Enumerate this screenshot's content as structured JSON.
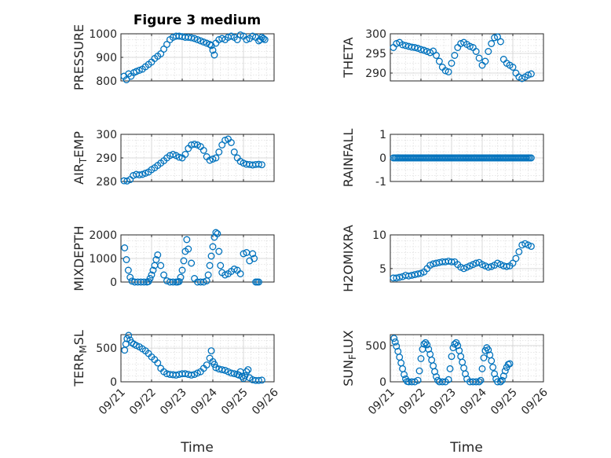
{
  "figure": {
    "title": "Figure 3 medium",
    "marker_color": "#0072BD",
    "date_ticks": [
      "09/21",
      "09/22",
      "09/23",
      "09/24",
      "09/25",
      "09/26"
    ],
    "x_axis_label": "Time"
  },
  "chart_data": [
    {
      "type": "scatter",
      "ylabel": "PRESSURE",
      "ylim": [
        800,
        1000
      ],
      "yticks": [
        800,
        900,
        1000
      ],
      "xlim_days": [
        0,
        5
      ],
      "grid": true,
      "x_day": [
        0.1,
        0.18,
        0.25,
        0.33,
        0.42,
        0.5,
        0.6,
        0.7,
        0.8,
        0.9,
        1.0,
        1.1,
        1.2,
        1.3,
        1.4,
        1.5,
        1.6,
        1.7,
        1.8,
        1.9,
        2.0,
        2.1,
        2.2,
        2.3,
        2.4,
        2.5,
        2.6,
        2.7,
        2.8,
        2.9,
        2.95,
        3.0,
        3.05,
        3.1,
        3.2,
        3.3,
        3.4,
        3.5,
        3.6,
        3.7,
        3.8,
        3.9,
        4.0,
        4.1,
        4.2,
        4.3,
        4.4,
        4.5,
        4.55,
        4.6,
        4.65,
        4.7
      ],
      "y": [
        820,
        805,
        830,
        820,
        835,
        840,
        845,
        850,
        860,
        870,
        880,
        895,
        905,
        915,
        935,
        955,
        975,
        985,
        990,
        990,
        988,
        985,
        985,
        983,
        980,
        975,
        970,
        965,
        960,
        955,
        950,
        930,
        910,
        960,
        975,
        980,
        975,
        985,
        990,
        985,
        975,
        995,
        990,
        975,
        980,
        990,
        985,
        970,
        975,
        985,
        980,
        975
      ]
    },
    {
      "type": "scatter",
      "ylabel": "THETA",
      "ylim": [
        288,
        300
      ],
      "yticks": [
        290,
        295,
        300
      ],
      "xlim_days": [
        0,
        5
      ],
      "grid": true,
      "x_day": [
        0.1,
        0.2,
        0.3,
        0.4,
        0.5,
        0.6,
        0.7,
        0.8,
        0.9,
        1.0,
        1.1,
        1.2,
        1.3,
        1.4,
        1.5,
        1.6,
        1.7,
        1.8,
        1.9,
        2.0,
        2.1,
        2.2,
        2.3,
        2.4,
        2.5,
        2.6,
        2.7,
        2.8,
        2.9,
        3.0,
        3.1,
        3.2,
        3.3,
        3.4,
        3.5,
        3.6,
        3.7,
        3.8,
        3.9,
        4.0,
        4.1,
        4.2,
        4.3,
        4.4,
        4.5,
        4.6
      ],
      "y": [
        296.5,
        297.5,
        297.8,
        297.2,
        297.0,
        296.8,
        296.6,
        296.5,
        296.3,
        296.0,
        295.8,
        295.5,
        295.2,
        295.6,
        294.5,
        293.0,
        291.5,
        290.6,
        290.3,
        292.5,
        294.5,
        296.5,
        297.5,
        297.8,
        297.3,
        296.8,
        296.5,
        295.5,
        293.8,
        292.0,
        293.0,
        295.5,
        297.5,
        299.0,
        299.2,
        298.0,
        293.5,
        292.5,
        292.0,
        291.5,
        290.0,
        289.0,
        288.6,
        289.0,
        289.5,
        289.8
      ]
    },
    {
      "type": "scatter",
      "ylabel": "AIR_TEMP",
      "ylim": [
        280,
        300
      ],
      "yticks": [
        280,
        290,
        300
      ],
      "xlim_days": [
        0,
        5
      ],
      "grid": true,
      "x_day": [
        0.1,
        0.2,
        0.3,
        0.4,
        0.5,
        0.6,
        0.7,
        0.8,
        0.9,
        1.0,
        1.1,
        1.2,
        1.3,
        1.4,
        1.5,
        1.6,
        1.7,
        1.8,
        1.9,
        2.0,
        2.1,
        2.2,
        2.3,
        2.4,
        2.5,
        2.6,
        2.7,
        2.8,
        2.9,
        3.0,
        3.1,
        3.2,
        3.3,
        3.4,
        3.5,
        3.6,
        3.7,
        3.8,
        3.9,
        4.0,
        4.1,
        4.2,
        4.3,
        4.4,
        4.5,
        4.6
      ],
      "y": [
        280.3,
        280.2,
        280.8,
        282.5,
        283.0,
        282.8,
        283.0,
        283.5,
        284.0,
        285.0,
        285.8,
        286.8,
        287.8,
        288.8,
        290.0,
        291.0,
        291.5,
        291.0,
        290.3,
        290.0,
        291.5,
        294.0,
        295.5,
        295.8,
        295.5,
        294.8,
        293.2,
        290.5,
        289.0,
        289.5,
        290.0,
        292.5,
        295.5,
        297.5,
        298.0,
        296.5,
        292.5,
        290.0,
        288.5,
        287.8,
        287.3,
        287.2,
        287.0,
        287.2,
        287.3,
        287.1
      ]
    },
    {
      "type": "scatter",
      "ylabel": "RAINFALL",
      "ylim": [
        -1,
        1
      ],
      "yticks": [
        -1,
        0,
        1
      ],
      "xlim_days": [
        0,
        5
      ],
      "grid": true,
      "x_day_range": [
        0.1,
        4.6
      ],
      "constant_y": 0
    },
    {
      "type": "scatter",
      "ylabel": "MIXDEPTH",
      "ylim": [
        0,
        2000
      ],
      "yticks": [
        0,
        1000,
        2000
      ],
      "xlim_days": [
        0,
        5
      ],
      "grid": true,
      "x_day": [
        0.12,
        0.18,
        0.24,
        0.3,
        0.36,
        0.45,
        0.55,
        0.65,
        0.75,
        0.85,
        0.9,
        0.95,
        1.0,
        1.05,
        1.1,
        1.15,
        1.2,
        1.3,
        1.4,
        1.5,
        1.6,
        1.7,
        1.8,
        1.85,
        1.9,
        1.95,
        2.0,
        2.05,
        2.1,
        2.15,
        2.2,
        2.3,
        2.4,
        2.5,
        2.6,
        2.7,
        2.8,
        2.85,
        2.9,
        2.95,
        3.0,
        3.05,
        3.1,
        3.15,
        3.2,
        3.25,
        3.3,
        3.4,
        3.5,
        3.6,
        3.7,
        3.8,
        3.9,
        4.0,
        4.1,
        4.2,
        4.3,
        4.35,
        4.4,
        4.45,
        4.5
      ],
      "y": [
        1450,
        950,
        500,
        200,
        40,
        0,
        0,
        0,
        0,
        0,
        20,
        150,
        300,
        500,
        700,
        950,
        1150,
        700,
        300,
        50,
        0,
        0,
        0,
        0,
        20,
        200,
        500,
        900,
        1300,
        1800,
        1400,
        800,
        150,
        0,
        0,
        0,
        50,
        300,
        700,
        1100,
        1500,
        1900,
        2100,
        2050,
        1300,
        700,
        400,
        300,
        350,
        450,
        550,
        500,
        350,
        1200,
        1250,
        900,
        1200,
        1000,
        0,
        0,
        0
      ]
    },
    {
      "type": "scatter",
      "ylabel": "H2OMIXRA",
      "ylim": [
        3,
        10
      ],
      "yticks": [
        5,
        10
      ],
      "xlim_days": [
        0,
        5
      ],
      "grid": true,
      "x_day": [
        0.1,
        0.2,
        0.3,
        0.4,
        0.5,
        0.6,
        0.7,
        0.8,
        0.9,
        1.0,
        1.1,
        1.2,
        1.3,
        1.4,
        1.5,
        1.6,
        1.7,
        1.8,
        1.9,
        2.0,
        2.1,
        2.2,
        2.3,
        2.4,
        2.5,
        2.6,
        2.7,
        2.8,
        2.9,
        3.0,
        3.1,
        3.2,
        3.3,
        3.4,
        3.5,
        3.6,
        3.7,
        3.8,
        3.9,
        4.0,
        4.1,
        4.2,
        4.3,
        4.4,
        4.5,
        4.6
      ],
      "y": [
        3.6,
        3.6,
        3.7,
        3.8,
        4.0,
        3.9,
        4.0,
        4.1,
        4.2,
        4.3,
        4.5,
        5.0,
        5.5,
        5.7,
        5.8,
        5.9,
        6.0,
        6.0,
        6.1,
        6.0,
        6.0,
        5.6,
        5.2,
        5.0,
        5.2,
        5.4,
        5.6,
        5.8,
        5.9,
        5.6,
        5.4,
        5.2,
        5.3,
        5.5,
        5.8,
        5.6,
        5.4,
        5.3,
        5.4,
        5.8,
        6.5,
        7.5,
        8.5,
        8.7,
        8.5,
        8.3
      ]
    },
    {
      "type": "scatter",
      "ylabel": "TERR_MSL",
      "ylim": [
        0,
        700
      ],
      "yticks": [
        0,
        500
      ],
      "xlim_days": [
        0,
        5
      ],
      "grid": true,
      "x_day": [
        0.12,
        0.16,
        0.2,
        0.25,
        0.3,
        0.35,
        0.42,
        0.5,
        0.6,
        0.7,
        0.8,
        0.9,
        1.0,
        1.1,
        1.2,
        1.3,
        1.4,
        1.5,
        1.6,
        1.7,
        1.8,
        1.9,
        2.0,
        2.1,
        2.2,
        2.3,
        2.4,
        2.5,
        2.6,
        2.7,
        2.8,
        2.9,
        2.95,
        3.0,
        3.05,
        3.1,
        3.2,
        3.3,
        3.4,
        3.5,
        3.6,
        3.7,
        3.8,
        3.85,
        3.9,
        3.95,
        4.0,
        4.05,
        4.1,
        4.15,
        4.2,
        4.3,
        4.4,
        4.5,
        4.6
      ],
      "y": [
        470,
        560,
        640,
        690,
        620,
        580,
        560,
        540,
        520,
        490,
        460,
        420,
        370,
        330,
        280,
        200,
        150,
        120,
        110,
        105,
        100,
        110,
        120,
        120,
        110,
        100,
        110,
        130,
        150,
        200,
        250,
        350,
        460,
        300,
        260,
        210,
        190,
        180,
        170,
        150,
        130,
        120,
        110,
        100,
        150,
        80,
        50,
        90,
        150,
        180,
        60,
        30,
        20,
        20,
        25
      ]
    },
    {
      "type": "scatter",
      "ylabel": "SUN_FLUX",
      "ylim": [
        0,
        650
      ],
      "yticks": [
        0,
        500
      ],
      "xlim_days": [
        0,
        5
      ],
      "grid": true,
      "x_day": [
        0.12,
        0.16,
        0.2,
        0.25,
        0.3,
        0.35,
        0.4,
        0.45,
        0.5,
        0.55,
        0.6,
        0.7,
        0.8,
        0.9,
        0.95,
        1.0,
        1.05,
        1.1,
        1.15,
        1.2,
        1.25,
        1.3,
        1.35,
        1.4,
        1.45,
        1.5,
        1.55,
        1.6,
        1.7,
        1.8,
        1.9,
        1.95,
        2.0,
        2.05,
        2.1,
        2.15,
        2.2,
        2.25,
        2.3,
        2.35,
        2.4,
        2.45,
        2.5,
        2.6,
        2.7,
        2.8,
        2.9,
        2.95,
        3.0,
        3.05,
        3.1,
        3.15,
        3.2,
        3.25,
        3.3,
        3.35,
        3.4,
        3.45,
        3.5,
        3.6,
        3.65,
        3.7,
        3.75,
        3.8,
        3.85,
        3.9
      ],
      "y": [
        600,
        550,
        490,
        420,
        340,
        260,
        180,
        100,
        40,
        5,
        0,
        0,
        0,
        20,
        150,
        320,
        450,
        520,
        540,
        510,
        450,
        380,
        300,
        220,
        140,
        70,
        20,
        0,
        0,
        0,
        30,
        180,
        350,
        470,
        520,
        540,
        500,
        430,
        350,
        270,
        190,
        110,
        40,
        0,
        0,
        0,
        0,
        20,
        180,
        330,
        430,
        470,
        440,
        370,
        290,
        200,
        110,
        40,
        0,
        0,
        20,
        80,
        150,
        200,
        240,
        250
      ]
    }
  ]
}
